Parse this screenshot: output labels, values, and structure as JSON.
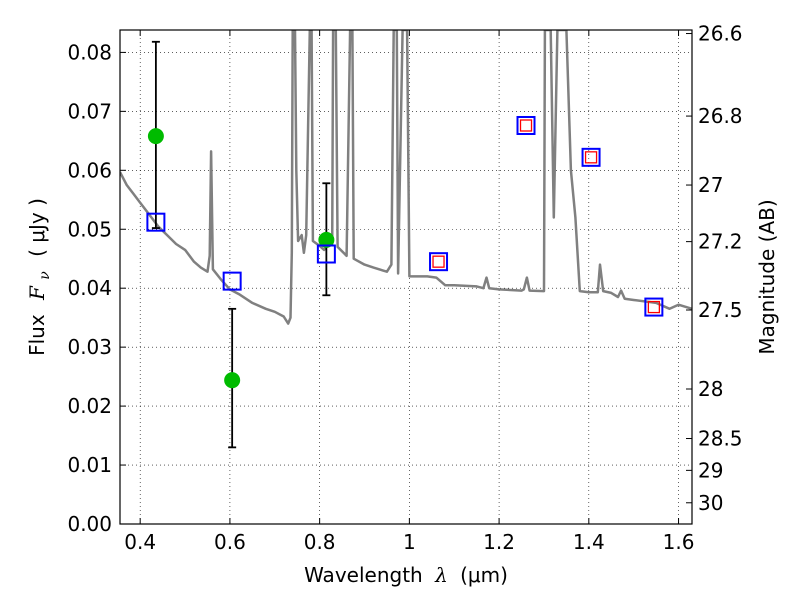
{
  "chart_data": {
    "type": "scatter",
    "xlabel": "Wavelength",
    "xlabel_symbol": "λ",
    "xlabel_unit": "(μm)",
    "ylabel": "Flux",
    "ylabel_symbol": "F",
    "ylabel_subscript": "ν",
    "ylabel_unit": "( μJy )",
    "y2label": "Magnitude (AB)",
    "xlim": [
      0.355,
      1.63
    ],
    "ylim": [
      0.0,
      0.0838
    ],
    "x_ticks": [
      0.4,
      0.6,
      0.8,
      1.0,
      1.2,
      1.4,
      1.6
    ],
    "x_tick_labels": [
      "0.4",
      "0.6",
      "0.8",
      "1",
      "1.2",
      "1.4",
      "1.6"
    ],
    "y_ticks": [
      0.0,
      0.01,
      0.02,
      0.03,
      0.04,
      0.05,
      0.06,
      0.07,
      0.08
    ],
    "y_tick_labels": [
      "0.00",
      "0.01",
      "0.02",
      "0.03",
      "0.04",
      "0.05",
      "0.06",
      "0.07",
      "0.08"
    ],
    "y2_ticks": [
      {
        "label": "26.6",
        "flux": 0.0832
      },
      {
        "label": "26.8",
        "flux": 0.0692
      },
      {
        "label": "27",
        "flux": 0.0575
      },
      {
        "label": "27.2",
        "flux": 0.0479
      },
      {
        "label": "27.5",
        "flux": 0.0363
      },
      {
        "label": "28",
        "flux": 0.0229
      },
      {
        "label": "28.5",
        "flux": 0.0145
      },
      {
        "label": "29",
        "flux": 0.0091
      },
      {
        "label": "30",
        "flux": 0.0036
      }
    ],
    "grid": true,
    "series": [
      {
        "kind": "line",
        "color": "#808080",
        "points": [
          [
            0.355,
            0.0597
          ],
          [
            0.37,
            0.0575
          ],
          [
            0.385,
            0.056
          ],
          [
            0.4,
            0.0545
          ],
          [
            0.42,
            0.0525
          ],
          [
            0.44,
            0.0505
          ],
          [
            0.46,
            0.049
          ],
          [
            0.48,
            0.0475
          ],
          [
            0.5,
            0.0465
          ],
          [
            0.52,
            0.0445
          ],
          [
            0.535,
            0.0435
          ],
          [
            0.55,
            0.0428
          ],
          [
            0.555,
            0.0455
          ],
          [
            0.558,
            0.0632
          ],
          [
            0.562,
            0.0432
          ],
          [
            0.58,
            0.0415
          ],
          [
            0.6,
            0.0398
          ],
          [
            0.62,
            0.039
          ],
          [
            0.65,
            0.0375
          ],
          [
            0.68,
            0.0365
          ],
          [
            0.7,
            0.036
          ],
          [
            0.72,
            0.0352
          ],
          [
            0.73,
            0.034
          ],
          [
            0.735,
            0.035
          ],
          [
            0.738,
            0.046
          ],
          [
            0.74,
            0.0838
          ],
          [
            0.745,
            0.0838
          ],
          [
            0.748,
            0.06
          ],
          [
            0.752,
            0.048
          ],
          [
            0.76,
            0.049
          ],
          [
            0.765,
            0.046
          ],
          [
            0.77,
            0.049
          ],
          [
            0.778,
            0.0838
          ],
          [
            0.782,
            0.0838
          ],
          [
            0.785,
            0.048
          ],
          [
            0.8,
            0.0472
          ],
          [
            0.81,
            0.0465
          ],
          [
            0.82,
            0.0475
          ],
          [
            0.828,
            0.0475
          ],
          [
            0.83,
            0.0838
          ],
          [
            0.836,
            0.0838
          ],
          [
            0.84,
            0.047
          ],
          [
            0.86,
            0.0455
          ],
          [
            0.868,
            0.0838
          ],
          [
            0.873,
            0.0838
          ],
          [
            0.876,
            0.045
          ],
          [
            0.9,
            0.044
          ],
          [
            0.92,
            0.0435
          ],
          [
            0.95,
            0.0428
          ],
          [
            0.96,
            0.044
          ],
          [
            0.965,
            0.0838
          ],
          [
            0.972,
            0.0838
          ],
          [
            0.975,
            0.0425
          ],
          [
            0.985,
            0.0838
          ],
          [
            0.995,
            0.0838
          ],
          [
            1.0,
            0.042
          ],
          [
            1.02,
            0.042
          ],
          [
            1.04,
            0.042
          ],
          [
            1.06,
            0.0418
          ],
          [
            1.08,
            0.0405
          ],
          [
            1.1,
            0.0405
          ],
          [
            1.15,
            0.0403
          ],
          [
            1.165,
            0.04
          ],
          [
            1.172,
            0.0418
          ],
          [
            1.178,
            0.04
          ],
          [
            1.2,
            0.0398
          ],
          [
            1.25,
            0.0396
          ],
          [
            1.255,
            0.0398
          ],
          [
            1.262,
            0.0418
          ],
          [
            1.268,
            0.0396
          ],
          [
            1.3,
            0.0395
          ],
          [
            1.302,
            0.0838
          ],
          [
            1.312,
            0.0838
          ],
          [
            1.315,
            0.0838
          ],
          [
            1.322,
            0.052
          ],
          [
            1.33,
            0.0838
          ],
          [
            1.345,
            0.0838
          ],
          [
            1.35,
            0.0838
          ],
          [
            1.36,
            0.06
          ],
          [
            1.37,
            0.052
          ],
          [
            1.38,
            0.0395
          ],
          [
            1.4,
            0.0393
          ],
          [
            1.42,
            0.0393
          ],
          [
            1.425,
            0.044
          ],
          [
            1.432,
            0.0395
          ],
          [
            1.45,
            0.0392
          ],
          [
            1.465,
            0.0385
          ],
          [
            1.472,
            0.0396
          ],
          [
            1.48,
            0.0382
          ],
          [
            1.5,
            0.038
          ],
          [
            1.55,
            0.0375
          ],
          [
            1.58,
            0.0365
          ],
          [
            1.6,
            0.0372
          ],
          [
            1.63,
            0.0365
          ]
        ]
      },
      {
        "kind": "points",
        "marker": "circle",
        "color": "#00bb00",
        "points": [
          {
            "x": 0.435,
            "y": 0.0658,
            "err_low": 0.0502,
            "err_high": 0.0818
          },
          {
            "x": 0.605,
            "y": 0.0244,
            "err_low": 0.013,
            "err_high": 0.0365
          },
          {
            "x": 0.815,
            "y": 0.0482,
            "err_low": 0.0388,
            "err_high": 0.0578
          }
        ]
      },
      {
        "kind": "points",
        "marker": "square",
        "edge_color": "#0000ff",
        "points": [
          {
            "x": 0.435,
            "y": 0.0512
          },
          {
            "x": 0.605,
            "y": 0.0412
          },
          {
            "x": 0.815,
            "y": 0.0458
          },
          {
            "x": 1.065,
            "y": 0.0445
          },
          {
            "x": 1.26,
            "y": 0.0676
          },
          {
            "x": 1.405,
            "y": 0.0622
          },
          {
            "x": 1.545,
            "y": 0.0368
          }
        ]
      },
      {
        "kind": "points",
        "marker": "square",
        "edge_color": "#ff0000",
        "points": [
          {
            "x": 1.065,
            "y": 0.0445
          },
          {
            "x": 1.26,
            "y": 0.0676
          },
          {
            "x": 1.405,
            "y": 0.0622
          },
          {
            "x": 1.545,
            "y": 0.0368
          }
        ]
      }
    ]
  }
}
